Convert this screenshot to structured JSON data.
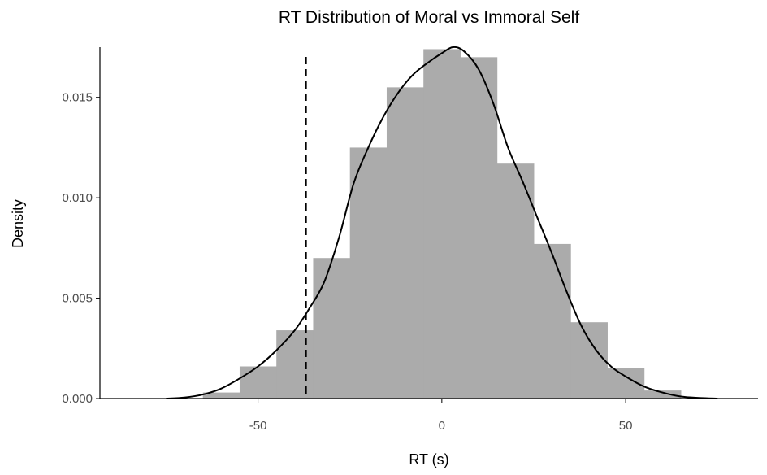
{
  "chart_data": {
    "type": "bar",
    "title": "RT Distribution of Moral vs Immoral Self",
    "xlabel": "RT (s)",
    "ylabel": "Density",
    "xlim": [
      -93,
      86
    ],
    "ylim": [
      0,
      0.0175
    ],
    "x_ticks": [
      -50,
      0,
      50
    ],
    "x_tick_labels": [
      "-50",
      "0",
      "50"
    ],
    "y_ticks": [
      0,
      0.005,
      0.01,
      0.015
    ],
    "y_tick_labels": [
      "0.000",
      "0.005",
      "0.010",
      "0.015"
    ],
    "bar_color": "#ababab",
    "grid": false,
    "bins": [
      {
        "start": -65,
        "end": -55,
        "density": 0.0003
      },
      {
        "start": -55,
        "end": -45,
        "density": 0.0016
      },
      {
        "start": -45,
        "end": -35,
        "density": 0.0034
      },
      {
        "start": -35,
        "end": -25,
        "density": 0.007
      },
      {
        "start": -25,
        "end": -15,
        "density": 0.0125
      },
      {
        "start": -15,
        "end": -5,
        "density": 0.0155
      },
      {
        "start": -5,
        "end": 5,
        "density": 0.0174
      },
      {
        "start": 5,
        "end": 15,
        "density": 0.017
      },
      {
        "start": 15,
        "end": 25,
        "density": 0.0117
      },
      {
        "start": 25,
        "end": 35,
        "density": 0.0077
      },
      {
        "start": 35,
        "end": 45,
        "density": 0.0038
      },
      {
        "start": 45,
        "end": 55,
        "density": 0.0015
      },
      {
        "start": 55,
        "end": 65,
        "density": 0.0004
      }
    ],
    "density_curve": {
      "color": "#000000",
      "x": [
        -75,
        -70,
        -65,
        -60,
        -55,
        -50,
        -45,
        -40,
        -36,
        -32,
        -28,
        -24,
        -20,
        -16,
        -12,
        -8,
        -4,
        0,
        3,
        6,
        10,
        14,
        18,
        22,
        26,
        30,
        34,
        38,
        42,
        46,
        50,
        55,
        60,
        65,
        70,
        75
      ],
      "y": [
        0.0,
        5e-05,
        0.0002,
        0.0005,
        0.001,
        0.0016,
        0.0024,
        0.0034,
        0.0045,
        0.0058,
        0.008,
        0.0107,
        0.0125,
        0.014,
        0.0152,
        0.0161,
        0.0167,
        0.0172,
        0.0175,
        0.0173,
        0.0164,
        0.0147,
        0.0125,
        0.0108,
        0.009,
        0.0072,
        0.0053,
        0.0036,
        0.0024,
        0.0016,
        0.0011,
        0.0006,
        0.0003,
        0.0001,
        3e-05,
        0.0
      ]
    },
    "reference_line": {
      "x": -37,
      "style": "dashed",
      "color": "#000000"
    }
  }
}
